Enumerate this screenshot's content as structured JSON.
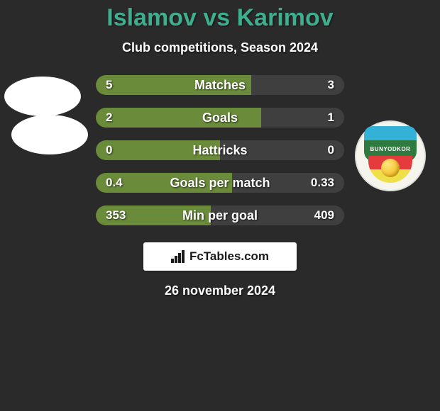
{
  "background_color": "#2a2a2a",
  "title": {
    "text": "Islamov vs Karimov",
    "color": "#3fae8e",
    "fontsize": 34
  },
  "subtitle": {
    "text": "Club competitions, Season 2024",
    "fontsize": 18
  },
  "player_left": {
    "badges": 2
  },
  "player_right": {
    "crest_label": "BUNYODKOR"
  },
  "row_colors": {
    "left_fill": "#6a8c3a",
    "right_fill": "#3f3f3f",
    "bg": "#3f3f3f"
  },
  "row_label_fontsize": 18,
  "row_val_fontsize": 17,
  "rows": [
    {
      "label": "Matches",
      "left_val": "5",
      "right_val": "3",
      "left_pct": 62.5,
      "right_pct": 37.5
    },
    {
      "label": "Goals",
      "left_val": "2",
      "right_val": "1",
      "left_pct": 66.7,
      "right_pct": 33.3
    },
    {
      "label": "Hattricks",
      "left_val": "0",
      "right_val": "0",
      "left_pct": 50,
      "right_pct": 50
    },
    {
      "label": "Goals per match",
      "left_val": "0.4",
      "right_val": "0.33",
      "left_pct": 54.8,
      "right_pct": 45.2
    },
    {
      "label": "Min per goal",
      "left_val": "353",
      "right_val": "409",
      "left_pct": 46.3,
      "right_pct": 53.7
    }
  ],
  "branding": {
    "text": "FcTables.com",
    "fontsize": 17
  },
  "date": {
    "text": "26 november 2024",
    "fontsize": 18
  }
}
